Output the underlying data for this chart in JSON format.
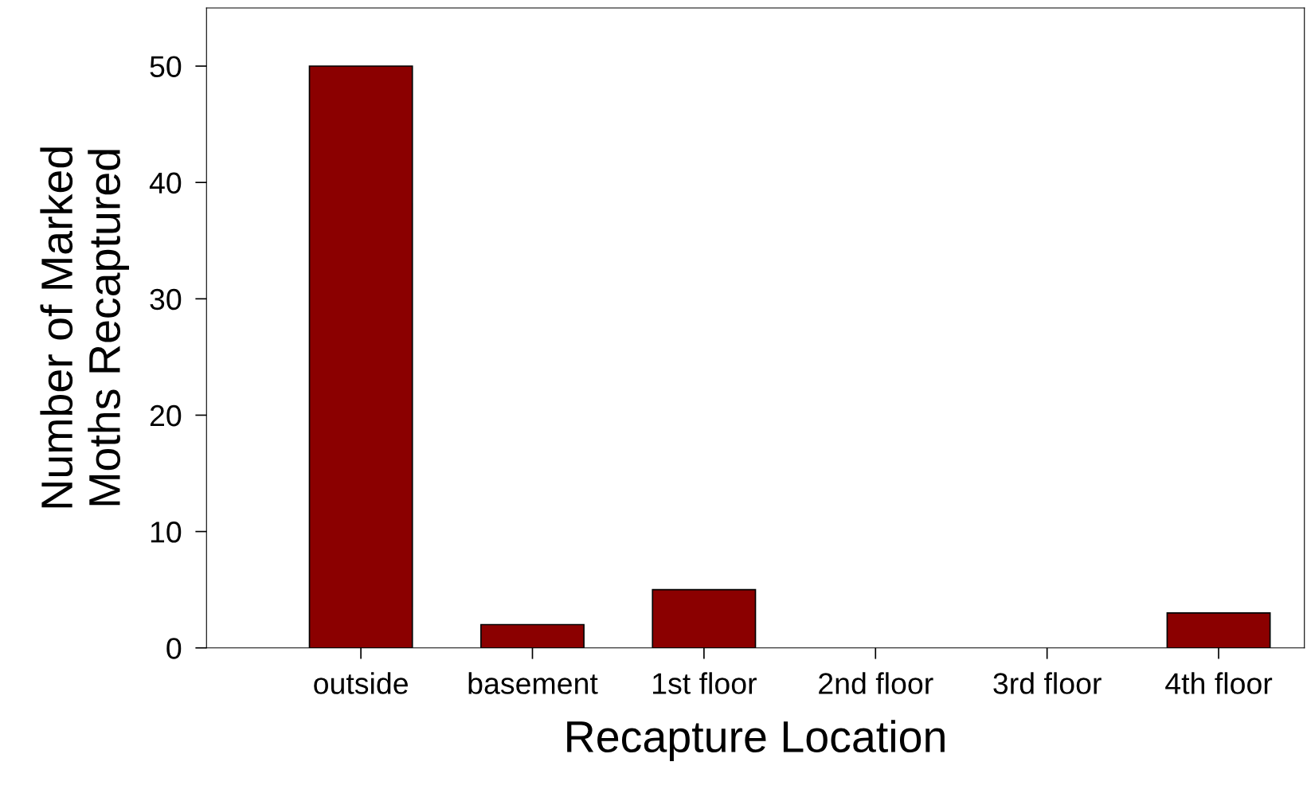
{
  "chart_data": {
    "type": "bar",
    "xlabel": "Recapture Location",
    "ylabel": "Number of Marked\nMoths Recaptured",
    "categories": [
      "outside",
      "basement",
      "1st floor",
      "2nd floor",
      "3rd floor",
      "4th floor"
    ],
    "values": [
      50,
      2,
      5,
      0,
      0,
      3
    ],
    "color": "#8b0000",
    "ylim": [
      0,
      55
    ],
    "yticks": [
      0,
      10,
      20,
      30,
      40,
      50
    ],
    "grid": false,
    "legend": false
  }
}
